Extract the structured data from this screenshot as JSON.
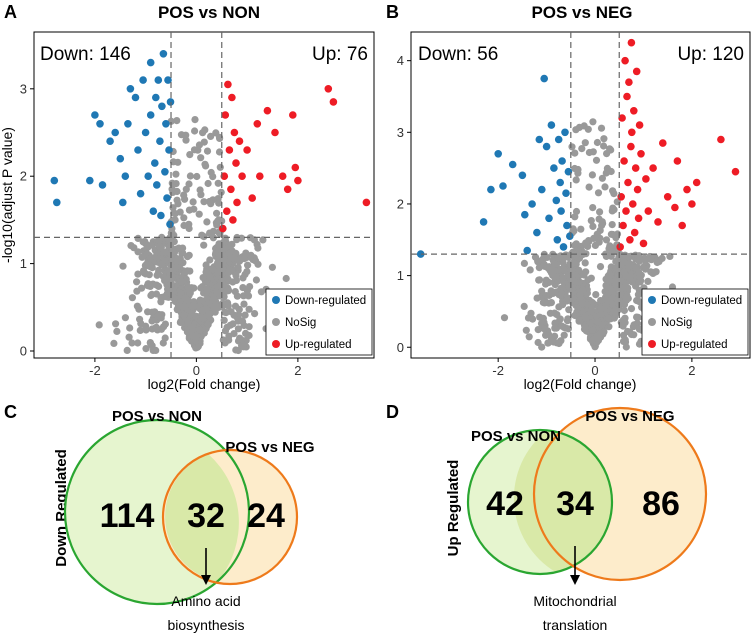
{
  "colors": {
    "down": "#1f78b4",
    "nosig": "#999999",
    "up": "#ee1c25",
    "venn_left_fill": "#e6f5cf",
    "venn_left_stroke": "#2aa631",
    "venn_right_fill": "#fdeccb",
    "venn_right_stroke": "#ee7a1b",
    "overlap_fill": "#d9e9a8"
  },
  "panels": {
    "A": {
      "letter": "A"
    },
    "B": {
      "letter": "B"
    },
    "C": {
      "letter": "C"
    },
    "D": {
      "letter": "D"
    }
  },
  "chart_data": [
    {
      "id": "A",
      "type": "scatter",
      "title": "POS vs NON",
      "xlabel": "log2(Fold change)",
      "ylabel": "-log10(adjust P value)",
      "xlim": [
        -3.2,
        3.5
      ],
      "ylim": [
        -0.08,
        3.65
      ],
      "xticks": [
        -2,
        0,
        2
      ],
      "yticks": [
        0,
        1,
        2,
        3
      ],
      "fc_cutoff": 0.5,
      "p_cutoff": 1.3,
      "grid": false,
      "down_label": "Down: 146",
      "up_label": "Up: 76",
      "down_count": 146,
      "up_count": 76,
      "legend": [
        "Down-regulated",
        "NoSig",
        "Up-regulated"
      ],
      "legend_position": "bottom-right",
      "series": [
        {
          "name": "Down-regulated",
          "points": [
            [
              -2.8,
              1.95
            ],
            [
              -2.75,
              1.7
            ],
            [
              -2.1,
              1.95
            ],
            [
              -2.0,
              2.7
            ],
            [
              -1.9,
              2.6
            ],
            [
              -1.85,
              1.9
            ],
            [
              -1.7,
              2.4
            ],
            [
              -1.6,
              2.5
            ],
            [
              -1.5,
              2.2
            ],
            [
              -1.45,
              1.7
            ],
            [
              -1.4,
              2.0
            ],
            [
              -1.35,
              2.6
            ],
            [
              -1.3,
              3.0
            ],
            [
              -1.2,
              2.9
            ],
            [
              -1.15,
              2.3
            ],
            [
              -1.1,
              1.8
            ],
            [
              -1.05,
              3.1
            ],
            [
              -1.0,
              2.5
            ],
            [
              -0.95,
              2.0
            ],
            [
              -0.9,
              2.7
            ],
            [
              -0.9,
              3.3
            ],
            [
              -0.85,
              1.6
            ],
            [
              -0.82,
              2.15
            ],
            [
              -0.8,
              2.9
            ],
            [
              -0.78,
              1.9
            ],
            [
              -0.75,
              3.1
            ],
            [
              -0.72,
              2.4
            ],
            [
              -0.7,
              1.55
            ],
            [
              -0.68,
              2.8
            ],
            [
              -0.65,
              3.4
            ],
            [
              -0.62,
              2.05
            ],
            [
              -0.6,
              2.6
            ],
            [
              -0.58,
              1.75
            ],
            [
              -0.56,
              3.1
            ],
            [
              -0.54,
              2.3
            ],
            [
              -0.52,
              1.45
            ],
            [
              -0.51,
              2.85
            ]
          ]
        },
        {
          "name": "Up-regulated",
          "points": [
            [
              0.52,
              1.4
            ],
            [
              0.55,
              2.0
            ],
            [
              0.57,
              2.7
            ],
            [
              0.6,
              1.6
            ],
            [
              0.62,
              3.05
            ],
            [
              0.65,
              2.3
            ],
            [
              0.68,
              1.85
            ],
            [
              0.7,
              2.9
            ],
            [
              0.72,
              1.5
            ],
            [
              0.75,
              2.5
            ],
            [
              0.78,
              2.15
            ],
            [
              0.8,
              1.7
            ],
            [
              0.85,
              2.4
            ],
            [
              0.9,
              2.0
            ],
            [
              1.0,
              2.3
            ],
            [
              1.1,
              1.75
            ],
            [
              1.2,
              2.6
            ],
            [
              1.25,
              2.0
            ],
            [
              1.4,
              2.75
            ],
            [
              1.55,
              2.5
            ],
            [
              1.7,
              2.0
            ],
            [
              1.8,
              1.85
            ],
            [
              1.9,
              2.7
            ],
            [
              1.95,
              2.1
            ],
            [
              2.0,
              1.95
            ],
            [
              2.6,
              3.0
            ],
            [
              2.7,
              2.85
            ],
            [
              3.35,
              1.7
            ]
          ]
        }
      ],
      "nosig_spread": 3.0
    },
    {
      "id": "B",
      "type": "scatter",
      "title": "POS vs NEG",
      "xlabel": "log2(Fold change)",
      "ylabel": "",
      "xlim": [
        -3.8,
        3.2
      ],
      "ylim": [
        -0.15,
        4.4
      ],
      "xticks": [
        -2,
        0,
        2
      ],
      "yticks": [
        0,
        1,
        2,
        3,
        4
      ],
      "fc_cutoff": 0.5,
      "p_cutoff": 1.3,
      "grid": false,
      "down_label": "Down: 56",
      "up_label": "Up: 120",
      "down_count": 56,
      "up_count": 120,
      "legend": [
        "Down-regulated",
        "NoSig",
        "Up-regulated"
      ],
      "legend_position": "bottom-right",
      "series": [
        {
          "name": "Down-regulated",
          "points": [
            [
              -3.6,
              1.3
            ],
            [
              -2.3,
              1.75
            ],
            [
              -2.15,
              2.2
            ],
            [
              -2.0,
              2.7
            ],
            [
              -1.9,
              2.25
            ],
            [
              -1.7,
              2.55
            ],
            [
              -1.5,
              2.4
            ],
            [
              -1.45,
              1.85
            ],
            [
              -1.4,
              1.35
            ],
            [
              -1.3,
              2.0
            ],
            [
              -1.2,
              1.6
            ],
            [
              -1.15,
              2.9
            ],
            [
              -1.1,
              2.2
            ],
            [
              -1.05,
              3.75
            ],
            [
              -1.0,
              2.8
            ],
            [
              -0.95,
              1.8
            ],
            [
              -0.9,
              3.1
            ],
            [
              -0.85,
              2.5
            ],
            [
              -0.8,
              2.05
            ],
            [
              -0.78,
              1.5
            ],
            [
              -0.75,
              2.9
            ],
            [
              -0.72,
              2.3
            ],
            [
              -0.7,
              1.9
            ],
            [
              -0.68,
              2.6
            ],
            [
              -0.65,
              1.4
            ],
            [
              -0.62,
              3.0
            ],
            [
              -0.6,
              2.15
            ],
            [
              -0.58,
              1.7
            ],
            [
              -0.55,
              2.45
            ],
            [
              -0.52,
              1.55
            ]
          ]
        },
        {
          "name": "Up-regulated",
          "points": [
            [
              0.52,
              1.4
            ],
            [
              0.54,
              2.1
            ],
            [
              0.56,
              3.2
            ],
            [
              0.58,
              1.7
            ],
            [
              0.6,
              2.6
            ],
            [
              0.62,
              4.0
            ],
            [
              0.64,
              1.9
            ],
            [
              0.66,
              3.5
            ],
            [
              0.68,
              2.3
            ],
            [
              0.7,
              3.7
            ],
            [
              0.72,
              1.5
            ],
            [
              0.74,
              2.8
            ],
            [
              0.75,
              4.25
            ],
            [
              0.76,
              3.0
            ],
            [
              0.78,
              2.0
            ],
            [
              0.8,
              3.3
            ],
            [
              0.82,
              1.6
            ],
            [
              0.84,
              2.5
            ],
            [
              0.86,
              3.85
            ],
            [
              0.88,
              2.2
            ],
            [
              0.9,
              1.8
            ],
            [
              0.92,
              3.1
            ],
            [
              0.95,
              2.7
            ],
            [
              1.0,
              1.45
            ],
            [
              1.05,
              2.35
            ],
            [
              1.1,
              1.9
            ],
            [
              1.2,
              2.5
            ],
            [
              1.3,
              1.75
            ],
            [
              1.4,
              2.85
            ],
            [
              1.5,
              2.1
            ],
            [
              1.65,
              1.95
            ],
            [
              1.7,
              2.6
            ],
            [
              1.8,
              1.7
            ],
            [
              1.9,
              2.2
            ],
            [
              2.0,
              2.0
            ],
            [
              2.1,
              2.3
            ],
            [
              2.6,
              2.9
            ],
            [
              2.9,
              2.45
            ]
          ]
        }
      ],
      "nosig_spread": 3.2
    }
  ],
  "venn": [
    {
      "id": "C",
      "side_label": "Down Regulated",
      "left_label": "POS vs NON",
      "right_label": "POS vs NEG",
      "left_only": "114",
      "overlap": "32",
      "right_only": "24",
      "annotation_line1": "Amino acid",
      "annotation_line2": "biosynthesis"
    },
    {
      "id": "D",
      "side_label": "Up Regulated",
      "left_label": "POS vs NON",
      "right_label": "POS vs NEG",
      "left_only": "42",
      "overlap": "34",
      "right_only": "86",
      "annotation_line1": "Mitochondrial",
      "annotation_line2": "translation"
    }
  ]
}
